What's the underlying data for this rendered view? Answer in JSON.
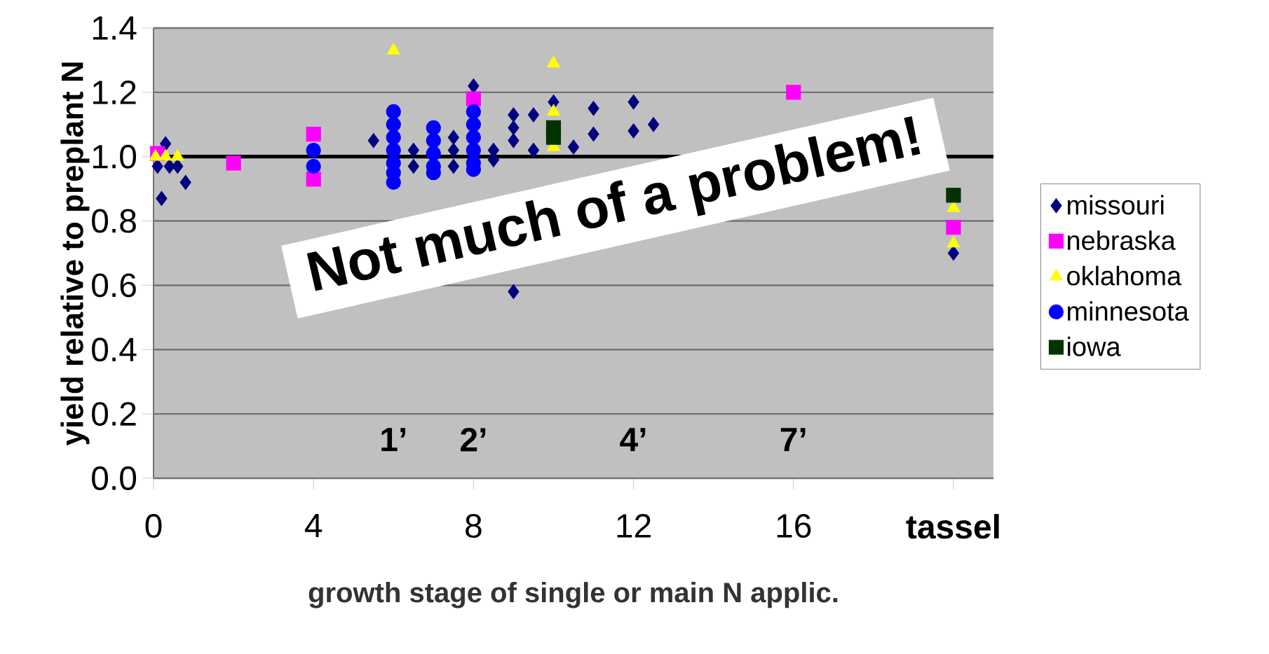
{
  "chart_data": {
    "type": "scatter",
    "xlabel": "growth stage of single or main N applic.",
    "ylabel": "yield relative to preplant N",
    "xlim": [
      0,
      21
    ],
    "ylim": [
      0,
      1.4
    ],
    "xticks": [
      0,
      4,
      8,
      12,
      16,
      {
        "value": 20,
        "label": "**tassel**"
      }
    ],
    "yticks": [
      {
        "value": 0,
        "label": "0.0"
      },
      {
        "value": 0.2,
        "label": "0.2"
      },
      {
        "value": 0.4,
        "label": "0.4"
      },
      {
        "value": 0.6,
        "label": "0.6"
      },
      {
        "value": 0.8,
        "label": "0.8"
      },
      {
        "value": 1.0,
        "label": "1.0"
      },
      {
        "value": 1.2,
        "label": "1.2"
      },
      {
        "value": 1.4,
        "label": "1.4"
      }
    ],
    "grid": "y",
    "legend": "right",
    "series": [
      {
        "name": "missouri",
        "color": "#000080",
        "marker": "diamond",
        "x": [
          0.2,
          0.3,
          0.1,
          0.4,
          0.6,
          0.8,
          5.5,
          6.5,
          6.5,
          7.5,
          7.5,
          7.5,
          8,
          8.5,
          8.5,
          9,
          9,
          9,
          9,
          9.5,
          9.5,
          10,
          10.5,
          11,
          11,
          12,
          12,
          12.5,
          20
        ],
        "values": [
          0.87,
          1.04,
          0.97,
          0.97,
          0.97,
          0.92,
          1.05,
          1.02,
          0.97,
          1.06,
          1.02,
          0.97,
          1.22,
          1.02,
          0.99,
          1.13,
          1.09,
          1.05,
          0.58,
          1.13,
          1.02,
          1.17,
          1.03,
          1.15,
          1.07,
          1.17,
          1.08,
          1.1,
          0.7
        ]
      },
      {
        "name": "nebraska",
        "color": "#ff00ff",
        "marker": "square",
        "x": [
          0.1,
          2,
          4,
          4,
          8,
          16,
          20
        ],
        "values": [
          1.01,
          0.98,
          1.07,
          0.93,
          1.18,
          1.2,
          0.78
        ]
      },
      {
        "name": "oklahoma",
        "color": "#ffff00",
        "marker": "triangle",
        "x": [
          0.05,
          0.3,
          0.6,
          6,
          10,
          10,
          10,
          20,
          20
        ],
        "values": [
          1.0,
          1.0,
          1.0,
          1.33,
          1.29,
          1.14,
          1.03,
          0.84,
          0.73
        ]
      },
      {
        "name": "minnesota",
        "color": "#0000ff",
        "marker": "circle",
        "x": [
          4,
          4,
          6,
          6,
          6,
          6,
          6,
          6,
          6,
          7,
          7,
          7,
          7,
          7,
          8,
          8,
          8,
          8,
          8,
          8
        ],
        "values": [
          1.02,
          0.97,
          1.14,
          1.1,
          1.06,
          1.02,
          0.98,
          0.95,
          0.92,
          1.09,
          1.05,
          1.01,
          0.97,
          0.95,
          1.14,
          1.1,
          1.06,
          1.02,
          0.98,
          0.96
        ]
      },
      {
        "name": "iowa",
        "color": "#003300",
        "marker": "square",
        "x": [
          10,
          10,
          20
        ],
        "values": [
          1.09,
          1.06,
          0.88
        ]
      }
    ],
    "ref_lines": [
      {
        "axis": "y",
        "value": 1.0,
        "color": "#000000",
        "line_style": "solid"
      }
    ],
    "annotations": [
      "1’",
      "2’",
      "4’",
      "7’",
      "Not much of a problem!"
    ]
  }
}
